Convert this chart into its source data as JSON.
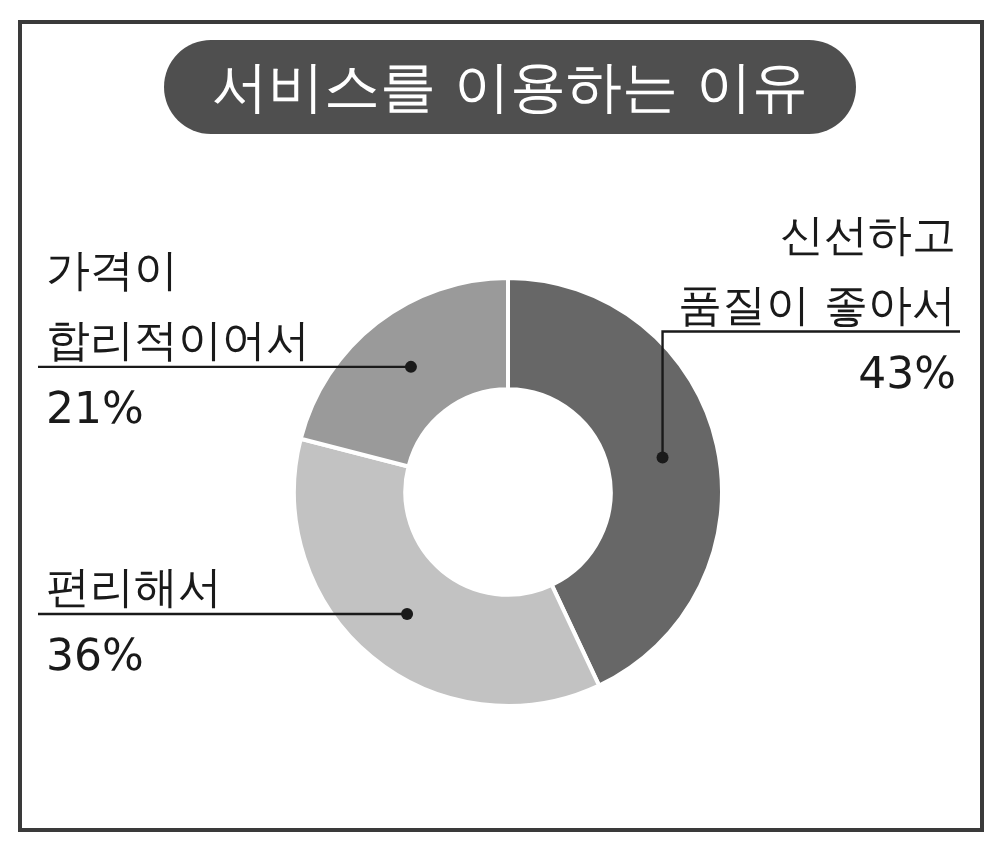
{
  "chart_data": {
    "type": "donut",
    "title": "서비스를 이용하는 이유",
    "categories": [
      "신선하고 품질이 좋아서",
      "편리해서",
      "가격이 합리적이어서"
    ],
    "values": [
      43,
      36,
      21
    ],
    "colors": [
      "#676767",
      "#c2c2c2",
      "#9a9a9a"
    ],
    "value_labels": [
      "43%",
      "36%",
      "21%"
    ],
    "legend": false
  }
}
